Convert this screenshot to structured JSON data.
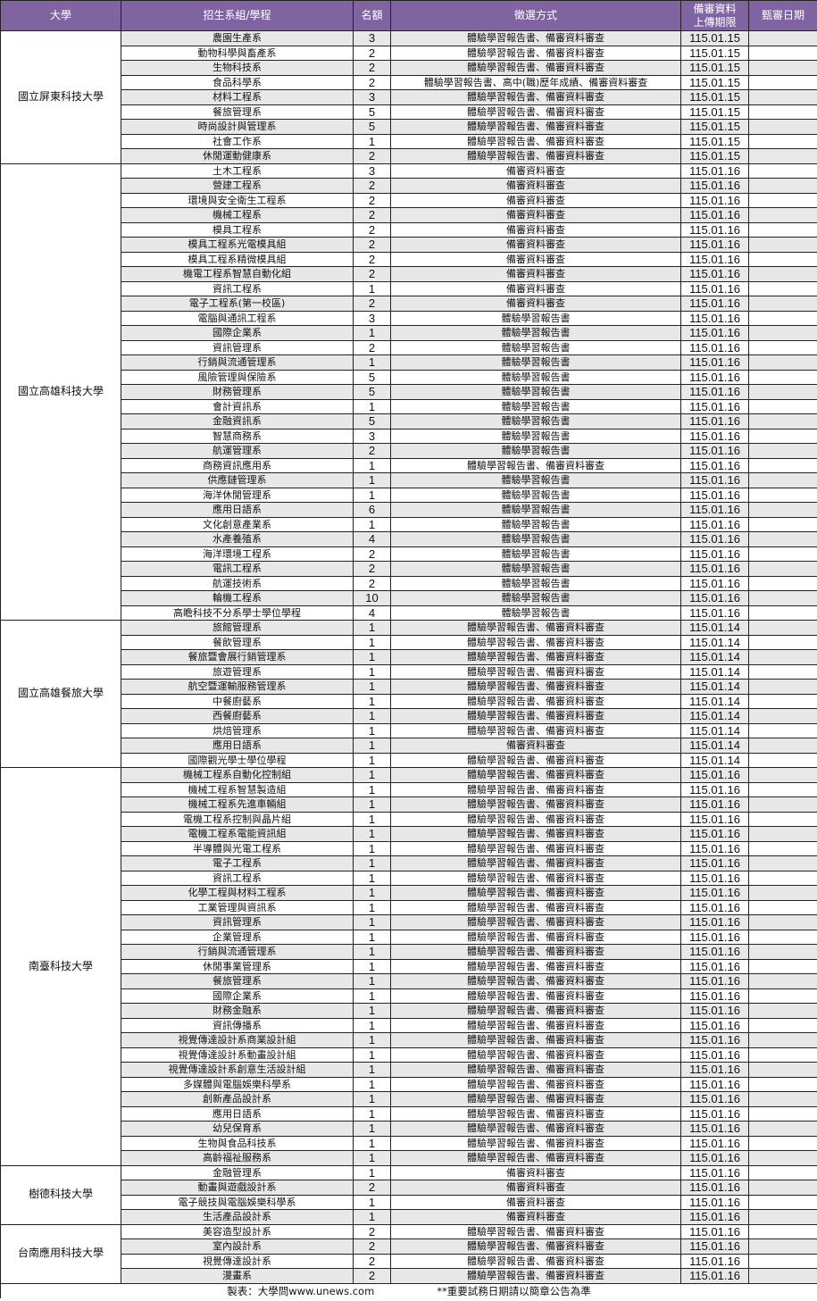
{
  "header": {
    "university": "大學",
    "program": "招生系組/學程",
    "quota": "名額",
    "method": "徵選方式",
    "deadline_line1": "備審資料",
    "deadline_line2": "上傳期限",
    "review_date": "甄審日期"
  },
  "colors": {
    "header_bg": "#8064A2",
    "stripe": "#e8e8e8"
  },
  "schools": [
    {
      "name": "國立屏東科技大學",
      "programs": [
        [
          "農園生產系",
          "3",
          "體驗學習報告書、備審資料審查",
          "115.01.15"
        ],
        [
          "動物科學與畜產系",
          "2",
          "體驗學習報告書、備審資料審查",
          "115.01.15"
        ],
        [
          "生物科技系",
          "2",
          "體驗學習報告書、備審資料審查",
          "115.01.15"
        ],
        [
          "食品科學系",
          "2",
          "體驗學習報告書、高中(職)歷年成績、備審資料審查",
          "115.01.15"
        ],
        [
          "材料工程系",
          "3",
          "體驗學習報告書、備審資料審查",
          "115.01.15"
        ],
        [
          "餐旅管理系",
          "5",
          "體驗學習報告書、備審資料審查",
          "115.01.15"
        ],
        [
          "時尚設計與管理系",
          "5",
          "體驗學習報告書、備審資料審查",
          "115.01.15"
        ],
        [
          "社會工作系",
          "1",
          "體驗學習報告書、備審資料審查",
          "115.01.15"
        ],
        [
          "休閒運動健康系",
          "2",
          "體驗學習報告書、備審資料審查",
          "115.01.15"
        ]
      ]
    },
    {
      "name": "國立高雄科技大學",
      "programs": [
        [
          "土木工程系",
          "3",
          "備審資料審查",
          "115.01.16"
        ],
        [
          "營建工程系",
          "2",
          "備審資料審查",
          "115.01.16"
        ],
        [
          "環境與安全衛生工程系",
          "2",
          "備審資料審查",
          "115.01.16"
        ],
        [
          "機械工程系",
          "2",
          "備審資料審查",
          "115.01.16"
        ],
        [
          "模具工程系",
          "2",
          "備審資料審查",
          "115.01.16"
        ],
        [
          "模具工程系光電模具組",
          "2",
          "備審資料審查",
          "115.01.16"
        ],
        [
          "模具工程系精微模具組",
          "2",
          "備審資料審查",
          "115.01.16"
        ],
        [
          "機電工程系智慧自動化組",
          "2",
          "備審資料審查",
          "115.01.16"
        ],
        [
          "資訊工程系",
          "1",
          "備審資料審查",
          "115.01.16"
        ],
        [
          "電子工程系(第一校區)",
          "2",
          "備審資料審查",
          "115.01.16"
        ],
        [
          "電腦與通訊工程系",
          "3",
          "體驗學習報告書",
          "115.01.16"
        ],
        [
          "國際企業系",
          "1",
          "體驗學習報告書",
          "115.01.16"
        ],
        [
          "資訊管理系",
          "2",
          "體驗學習報告書",
          "115.01.16"
        ],
        [
          "行銷與流通管理系",
          "1",
          "體驗學習報告書",
          "115.01.16"
        ],
        [
          "風險管理與保險系",
          "5",
          "體驗學習報告書",
          "115.01.16"
        ],
        [
          "財務管理系",
          "5",
          "體驗學習報告書",
          "115.01.16"
        ],
        [
          "會計資訊系",
          "1",
          "體驗學習報告書",
          "115.01.16"
        ],
        [
          "金融資訊系",
          "5",
          "體驗學習報告書",
          "115.01.16"
        ],
        [
          "智慧商務系",
          "3",
          "體驗學習報告書",
          "115.01.16"
        ],
        [
          "航運管理系",
          "2",
          "體驗學習報告書",
          "115.01.16"
        ],
        [
          "商務資訊應用系",
          "1",
          "體驗學習報告書、備審資料審查",
          "115.01.16"
        ],
        [
          "供應鏈管理系",
          "1",
          "體驗學習報告書",
          "115.01.16"
        ],
        [
          "海洋休閒管理系",
          "1",
          "體驗學習報告書",
          "115.01.16"
        ],
        [
          "應用日語系",
          "6",
          "體驗學習報告書",
          "115.01.16"
        ],
        [
          "文化創意產業系",
          "1",
          "體驗學習報告書",
          "115.01.16"
        ],
        [
          "水產養殖系",
          "4",
          "體驗學習報告書",
          "115.01.16"
        ],
        [
          "海洋環境工程系",
          "2",
          "體驗學習報告書",
          "115.01.16"
        ],
        [
          "電訊工程系",
          "2",
          "體驗學習報告書",
          "115.01.16"
        ],
        [
          "航運技術系",
          "2",
          "體驗學習報告書",
          "115.01.16"
        ],
        [
          "輪機工程系",
          "10",
          "體驗學習報告書",
          "115.01.16"
        ],
        [
          "高瞻科技不分系學士學位學程",
          "4",
          "體驗學習報告書",
          "115.01.16"
        ]
      ]
    },
    {
      "name": "國立高雄餐旅大學",
      "programs": [
        [
          "旅館管理系",
          "1",
          "體驗學習報告書、備審資料審查",
          "115.01.14"
        ],
        [
          "餐飲管理系",
          "1",
          "體驗學習報告書、備審資料審查",
          "115.01.14"
        ],
        [
          "餐旅暨會展行銷管理系",
          "1",
          "體驗學習報告書、備審資料審查",
          "115.01.14"
        ],
        [
          "旅遊管理系",
          "1",
          "體驗學習報告書、備審資料審查",
          "115.01.14"
        ],
        [
          "航空暨運輸服務管理系",
          "1",
          "體驗學習報告書、備審資料審查",
          "115.01.14"
        ],
        [
          "中餐廚藝系",
          "1",
          "體驗學習報告書、備審資料審查",
          "115.01.14"
        ],
        [
          "西餐廚藝系",
          "1",
          "體驗學習報告書、備審資料審查",
          "115.01.14"
        ],
        [
          "烘焙管理系",
          "1",
          "體驗學習報告書、備審資料審查",
          "115.01.14"
        ],
        [
          "應用日語系",
          "1",
          "備審資料審查",
          "115.01.14"
        ],
        [
          "國際觀光學士學位學程",
          "1",
          "體驗學習報告書、備審資料審查",
          "115.01.14"
        ]
      ]
    },
    {
      "name": "南臺科技大學",
      "programs": [
        [
          "機械工程系自動化控制組",
          "1",
          "體驗學習報告書、備審資料審查",
          "115.01.16"
        ],
        [
          "機械工程系智慧製造組",
          "1",
          "體驗學習報告書、備審資料審查",
          "115.01.16"
        ],
        [
          "機械工程系先進車輛組",
          "1",
          "體驗學習報告書、備審資料審查",
          "115.01.16"
        ],
        [
          "電機工程系控制與晶片組",
          "1",
          "體驗學習報告書、備審資料審查",
          "115.01.16"
        ],
        [
          "電機工程系電能資訊組",
          "1",
          "體驗學習報告書、備審資料審查",
          "115.01.16"
        ],
        [
          "半導體與光電工程系",
          "1",
          "體驗學習報告書、備審資料審查",
          "115.01.16"
        ],
        [
          "電子工程系",
          "1",
          "體驗學習報告書、備審資料審查",
          "115.01.16"
        ],
        [
          "資訊工程系",
          "1",
          "體驗學習報告書、備審資料審查",
          "115.01.16"
        ],
        [
          "化學工程與材料工程系",
          "1",
          "體驗學習報告書、備審資料審查",
          "115.01.16"
        ],
        [
          "工業管理與資訊系",
          "1",
          "體驗學習報告書、備審資料審查",
          "115.01.16"
        ],
        [
          "資訊管理系",
          "1",
          "體驗學習報告書、備審資料審查",
          "115.01.16"
        ],
        [
          "企業管理系",
          "1",
          "體驗學習報告書、備審資料審查",
          "115.01.16"
        ],
        [
          "行銷與流通管理系",
          "1",
          "體驗學習報告書、備審資料審查",
          "115.01.16"
        ],
        [
          "休閒事業管理系",
          "1",
          "體驗學習報告書、備審資料審查",
          "115.01.16"
        ],
        [
          "餐旅管理系",
          "1",
          "體驗學習報告書、備審資料審查",
          "115.01.16"
        ],
        [
          "國際企業系",
          "1",
          "體驗學習報告書、備審資料審查",
          "115.01.16"
        ],
        [
          "財務金融系",
          "1",
          "體驗學習報告書、備審資料審查",
          "115.01.16"
        ],
        [
          "資訊傳播系",
          "1",
          "體驗學習報告書、備審資料審查",
          "115.01.16"
        ],
        [
          "視覺傳達設計系商業設計組",
          "1",
          "體驗學習報告書、備審資料審查",
          "115.01.16"
        ],
        [
          "視覺傳達設計系動畫設計組",
          "1",
          "體驗學習報告書、備審資料審查",
          "115.01.16"
        ],
        [
          "視覺傳達設計系創意生活設計組",
          "1",
          "體驗學習報告書、備審資料審查",
          "115.01.16"
        ],
        [
          "多媒體與電腦娛樂科學系",
          "1",
          "體驗學習報告書、備審資料審查",
          "115.01.16"
        ],
        [
          "創新產品設計系",
          "1",
          "體驗學習報告書、備審資料審查",
          "115.01.16"
        ],
        [
          "應用日語系",
          "1",
          "體驗學習報告書、備審資料審查",
          "115.01.16"
        ],
        [
          "幼兒保育系",
          "1",
          "體驗學習報告書、備審資料審查",
          "115.01.16"
        ],
        [
          "生物與食品科技系",
          "1",
          "體驗學習報告書、備審資料審查",
          "115.01.16"
        ],
        [
          "高齡福祉服務系",
          "1",
          "體驗學習報告書、備審資料審查",
          "115.01.16"
        ]
      ]
    },
    {
      "name": "樹德科技大學",
      "programs": [
        [
          "金融管理系",
          "1",
          "備審資料審查",
          "115.01.16"
        ],
        [
          "動畫與遊戲設計系",
          "2",
          "備審資料審查",
          "115.01.16"
        ],
        [
          "電子競技與電腦娛樂科學系",
          "1",
          "備審資料審查",
          "115.01.16"
        ],
        [
          "生活產品設計系",
          "1",
          "備審資料審查",
          "115.01.16"
        ]
      ]
    },
    {
      "name": "台南應用科技大學",
      "programs": [
        [
          "美容造型設計系",
          "2",
          "體驗學習報告書、備審資料審查",
          "115.01.16"
        ],
        [
          "室內設計系",
          "2",
          "體驗學習報告書、備審資料審查",
          "115.01.16"
        ],
        [
          "視覺傳達設計系",
          "2",
          "體驗學習報告書、備審資料審查",
          "115.01.16"
        ],
        [
          "漫畫系",
          "2",
          "體驗學習報告書、備審資料審查",
          "115.01.16"
        ]
      ]
    }
  ],
  "footer": {
    "credit": "製表：大學問www.unews.com",
    "note": "**重要試務日期請以簡章公告為準"
  }
}
